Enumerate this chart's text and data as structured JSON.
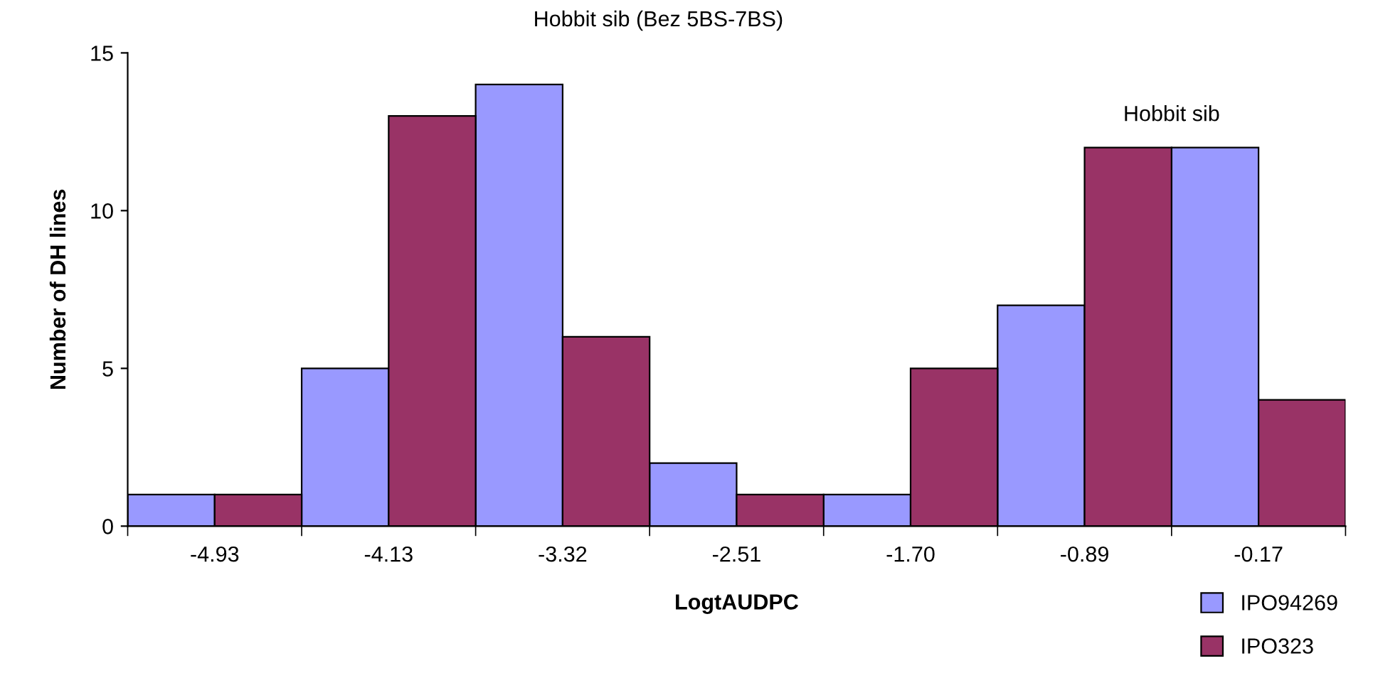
{
  "chart_data": {
    "type": "bar",
    "xlabel": "LogtAUDPC",
    "ylabel": "Number of DH lines",
    "categories": [
      "-4.93",
      "-4.13",
      "-3.32",
      "-2.51",
      "-1.70",
      "-0.89",
      "-0.17"
    ],
    "series": [
      {
        "name": "IPO94269",
        "color": "#9999ff",
        "values": [
          1,
          5,
          14,
          2,
          1,
          7,
          12
        ]
      },
      {
        "name": "IPO323",
        "color": "#993366",
        "values": [
          1,
          13,
          6,
          1,
          5,
          12,
          4
        ]
      }
    ],
    "ylim": [
      0,
      15
    ],
    "yticks": [
      0,
      5,
      10,
      15
    ],
    "grid": false,
    "legend": "bottom right",
    "annotations": [
      "Hobbit sib (Bez 5BS-7BS)",
      "Hobbit sib"
    ]
  }
}
